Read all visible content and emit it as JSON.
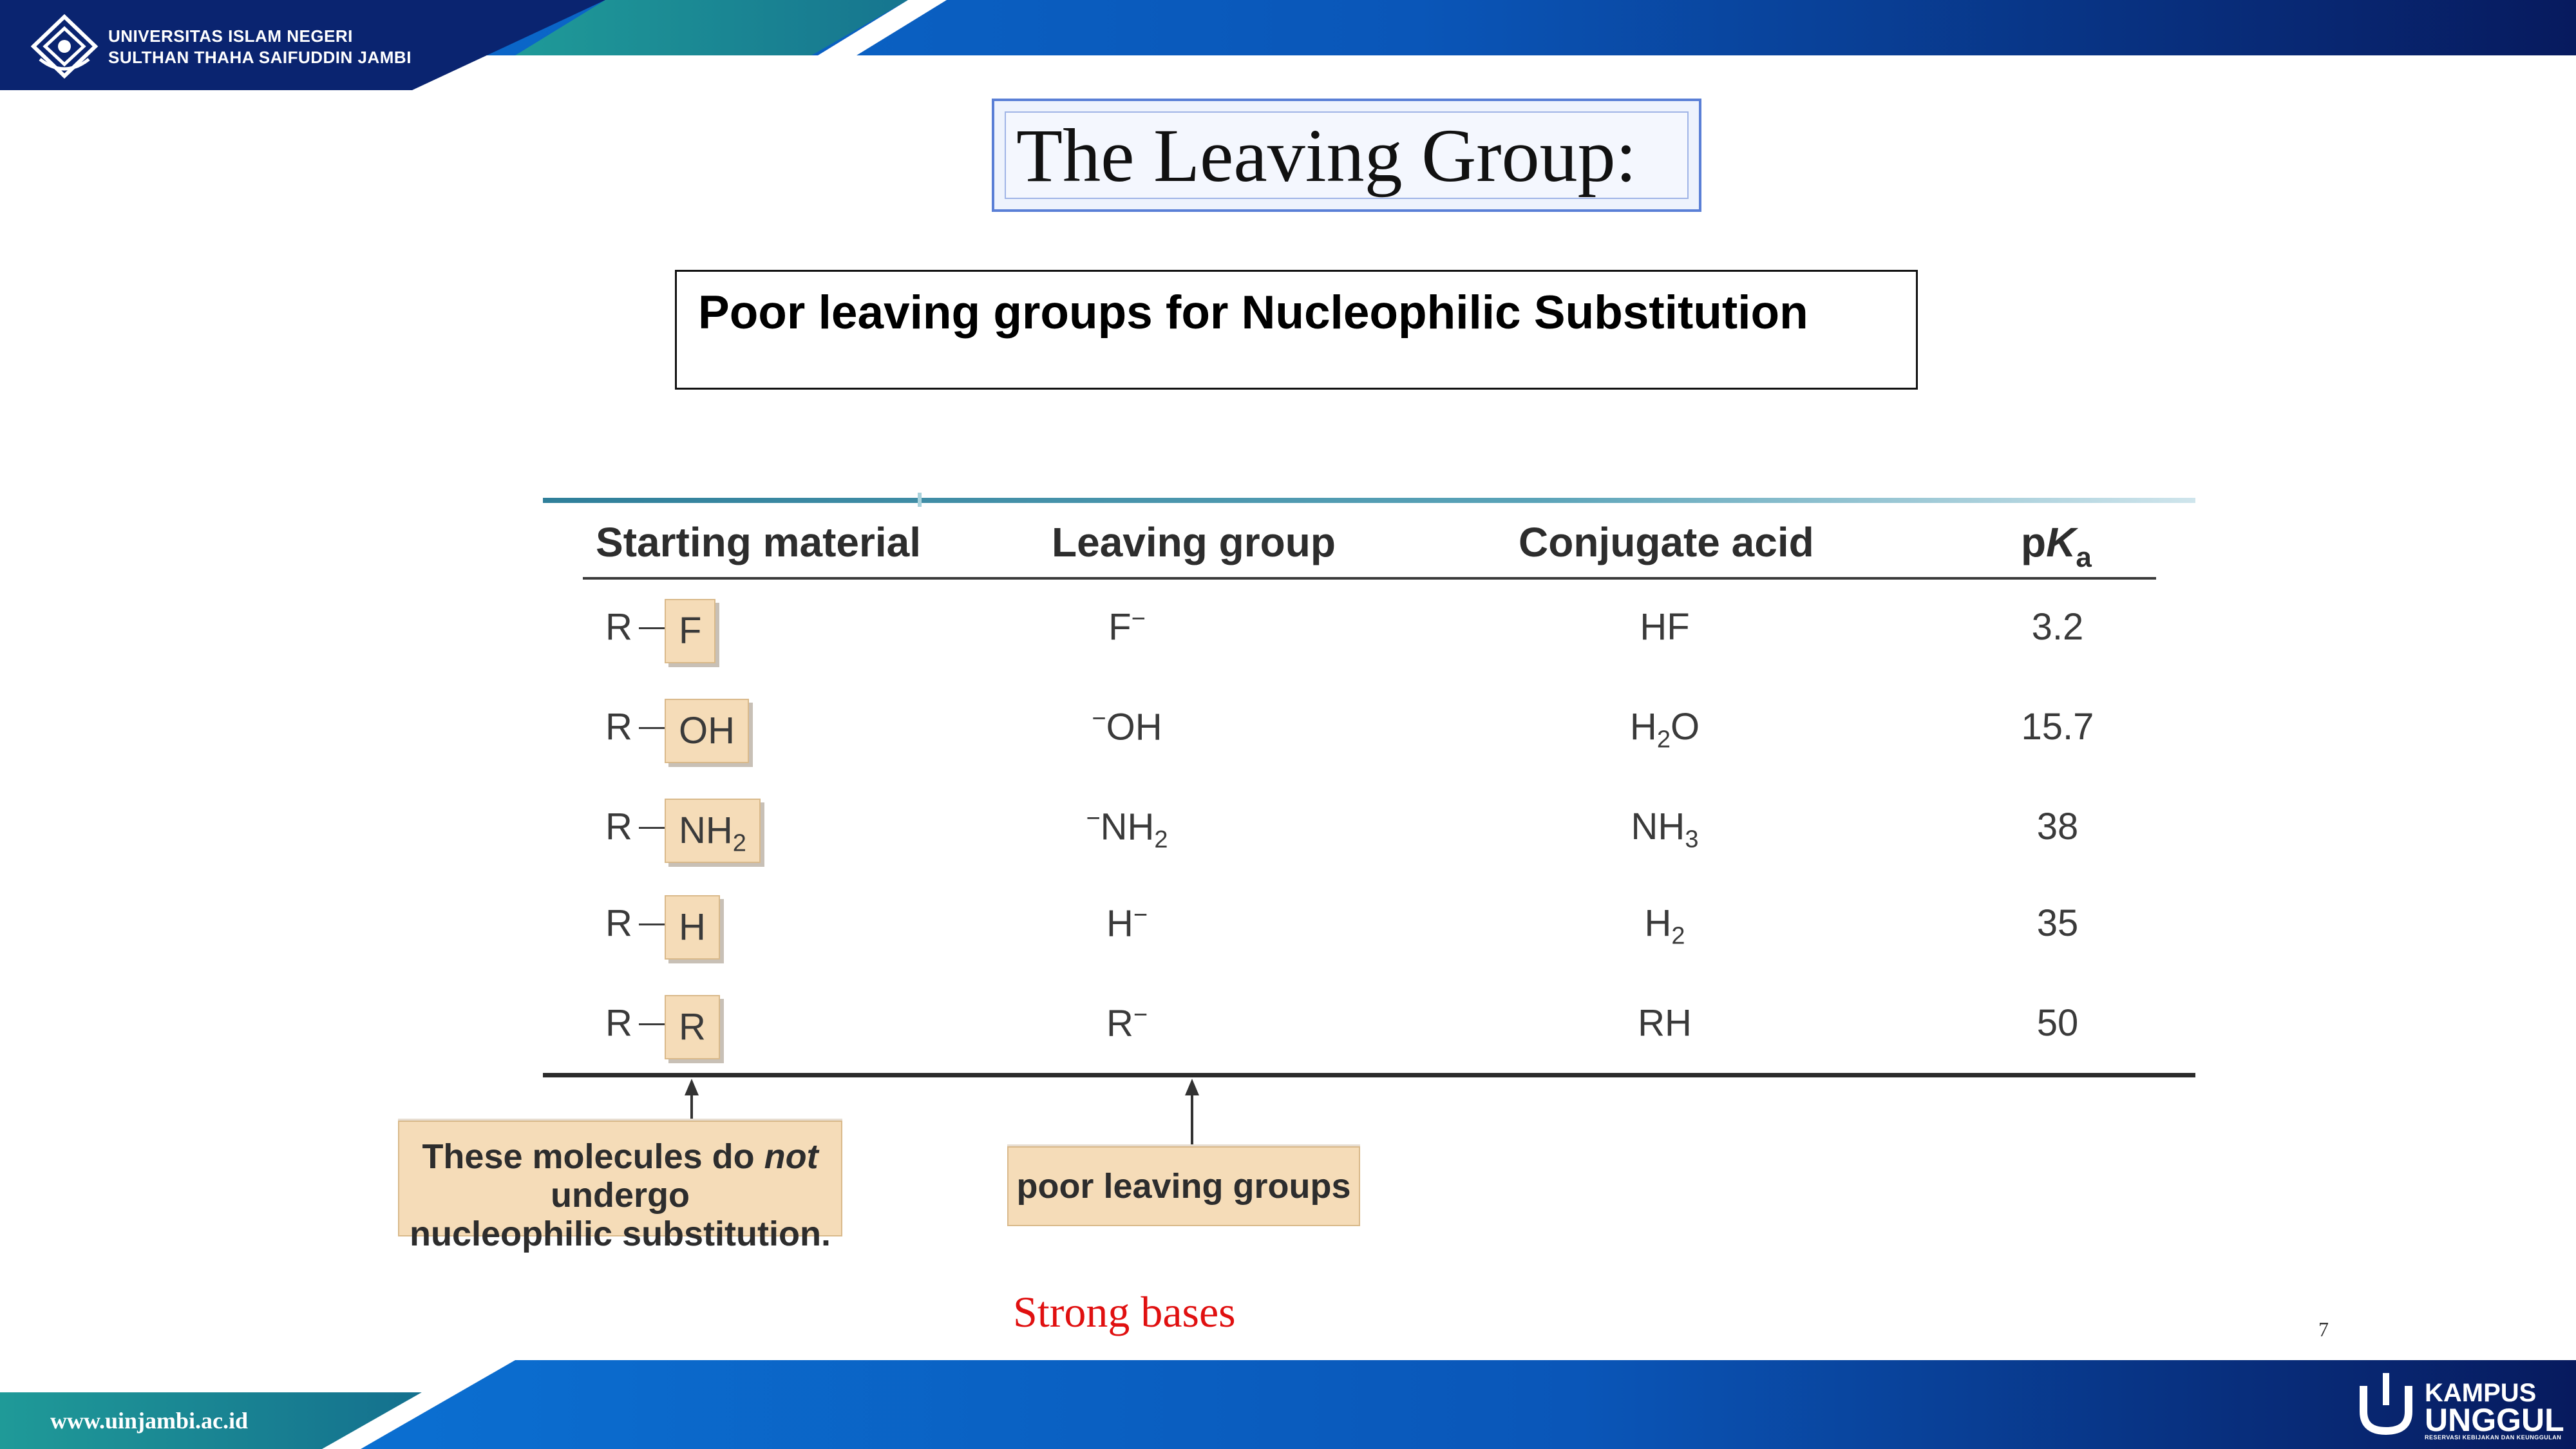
{
  "header": {
    "university_line1": "UNIVERSITAS ISLAM NEGERI",
    "university_line2": "SULTHAN THAHA SAIFUDDIN JAMBI",
    "logo_icon": "university-emblem-icon",
    "colors": {
      "dark_blue": "#0a2470",
      "blue": "#0b6fd1",
      "teal": "#1f9a98"
    }
  },
  "slide": {
    "title": "The Leaving Group:",
    "subtitle": "Poor leaving groups for  Nucleophilic Substitution",
    "strong_bases": "Strong bases",
    "page_number": "7",
    "strong_bases_color": "#e01010"
  },
  "table": {
    "headers": {
      "starting_material": "Starting material",
      "leaving_group": "Leaving group",
      "conjugate_acid": "Conjugate acid",
      "pka_p": "p",
      "pka_K": "K",
      "pka_a": "a"
    },
    "rows": [
      {
        "r": "R",
        "group": "F",
        "group_sub": "",
        "lg": "F",
        "lg_pre": "",
        "lg_sup": "−",
        "lg_sub": "",
        "acid": "HF",
        "acid_sub": "",
        "acid_post": "",
        "pka": "3.2"
      },
      {
        "r": "R",
        "group": "OH",
        "group_sub": "",
        "lg": "OH",
        "lg_pre": "−",
        "lg_sup": "",
        "lg_sub": "",
        "acid": "H",
        "acid_sub": "2",
        "acid_post": "O",
        "pka": "15.7"
      },
      {
        "r": "R",
        "group": "NH",
        "group_sub": "2",
        "lg": "NH",
        "lg_pre": "−",
        "lg_sup": "",
        "lg_sub": "2",
        "acid": "NH",
        "acid_sub": "3",
        "acid_post": "",
        "pka": "38"
      },
      {
        "r": "R",
        "group": "H",
        "group_sub": "",
        "lg": "H",
        "lg_pre": "",
        "lg_sup": "−",
        "lg_sub": "",
        "acid": "H",
        "acid_sub": "2",
        "acid_post": "",
        "pka": "35"
      },
      {
        "r": "R",
        "group": "R",
        "group_sub": "",
        "lg": "R",
        "lg_pre": "",
        "lg_sup": "−",
        "lg_sub": "",
        "acid": "RH",
        "acid_sub": "",
        "acid_post": "",
        "pka": "50"
      }
    ]
  },
  "callouts": {
    "no_substitution_part1": "These molecules do ",
    "no_substitution_italic": "not",
    "no_substitution_part2": " undergo",
    "no_substitution_line2": "nucleophilic substitution.",
    "poor_leaving_groups": "poor leaving groups"
  },
  "footer": {
    "url": "www.uinjambi.ac.id",
    "brand_line1": "KAMPUS",
    "brand_line2": "UNGGUL",
    "brand_tagline": "RESERVASI KEBIJAKAN DAN KEUNGGULAN",
    "brand_icon": "kampus-unggul-logo-icon"
  }
}
